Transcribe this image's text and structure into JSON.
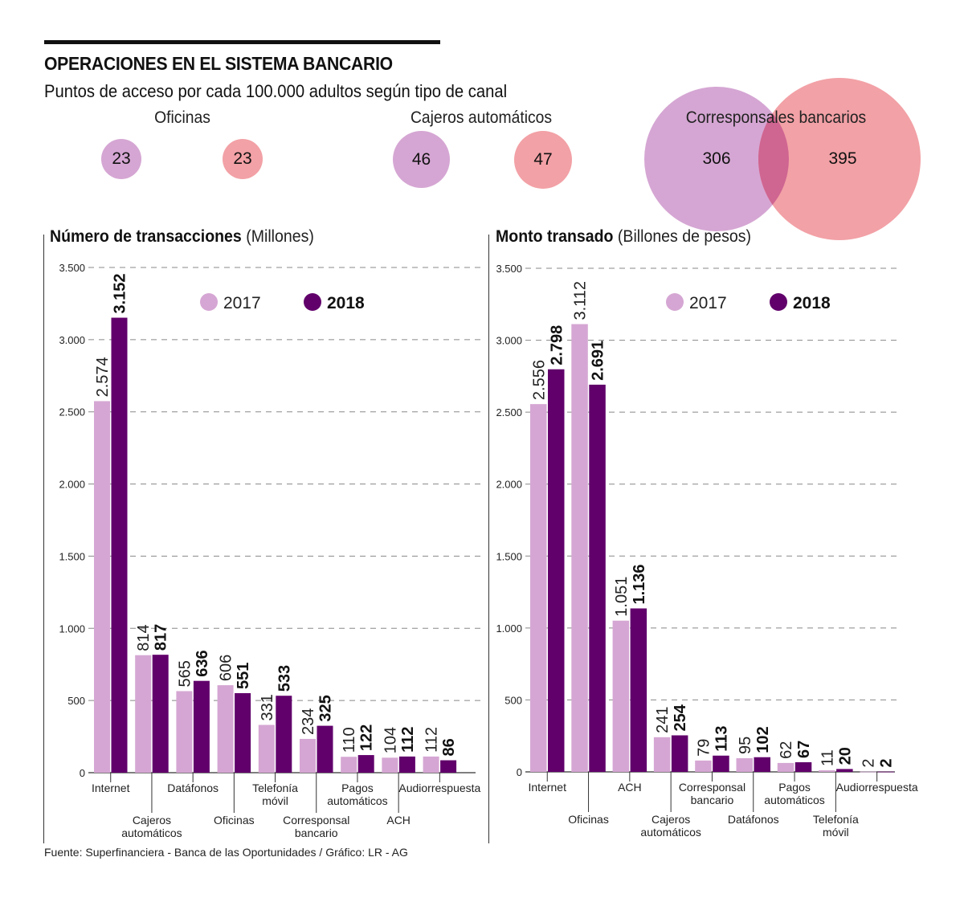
{
  "header": {
    "title": "OPERACIONES EN EL SISTEMA BANCARIO",
    "subtitle": "Puntos de acceso por cada 100.000 adultos según tipo de canal"
  },
  "colors": {
    "c2017": "#d5a6d3",
    "c2018": "#61006b",
    "pink": "#f2a1a6",
    "overlap": "#cf6591",
    "grid": "#888888",
    "axis": "#333333"
  },
  "access_points": {
    "groups": [
      {
        "label": "Oficinas",
        "v2017": "23",
        "v2018": "23"
      },
      {
        "label": "Cajeros automáticos",
        "v2017": "46",
        "v2018": "47"
      },
      {
        "label": "Corresponsales bancarios",
        "v2017": "306",
        "v2018": "395"
      }
    ]
  },
  "legend": {
    "y2017": "2017",
    "y2018": "2018"
  },
  "source": "Fuente: Superfinanciera - Banca de las Oportunidades / Gráfico: LR - AG",
  "chart_data": [
    {
      "type": "bar",
      "title": "Número de transacciones",
      "unit": "(Millones)",
      "xlabel": "",
      "ylabel": "",
      "ylim": [
        0,
        3500
      ],
      "yticks": [
        0,
        500,
        1000,
        1500,
        2000,
        2500,
        3000,
        3500
      ],
      "ytick_labels": [
        "0",
        "500",
        "1.000",
        "1.500",
        "2.000",
        "2.500",
        "3.000",
        "3.500"
      ],
      "grid": true,
      "legend_position": "top-center",
      "categories": [
        "Internet",
        "Cajeros automáticos",
        "Datáfonos",
        "Oficinas",
        "Telefonía móvil",
        "Corresponsal bancario",
        "Pagos automáticos",
        "ACH",
        "Audiorrespuesta"
      ],
      "category_lines": [
        [
          "Internet"
        ],
        [
          "Cajeros",
          "automáticos"
        ],
        [
          "Datáfonos"
        ],
        [
          "Oficinas"
        ],
        [
          "Telefonía",
          "móvil"
        ],
        [
          "Corresponsal",
          "bancario"
        ],
        [
          "Pagos",
          "automáticos"
        ],
        [
          "ACH"
        ],
        [
          "Audiorrespuesta"
        ]
      ],
      "series": [
        {
          "name": "2017",
          "values": [
            2574,
            814,
            565,
            606,
            331,
            234,
            110,
            104,
            112
          ],
          "labels": [
            "2.574",
            "814",
            "565",
            "606",
            "331",
            "234",
            "110",
            "104",
            "112"
          ]
        },
        {
          "name": "2018",
          "values": [
            3152,
            817,
            636,
            551,
            533,
            325,
            122,
            112,
            86
          ],
          "labels": [
            "3.152",
            "817",
            "636",
            "551",
            "533",
            "325",
            "122",
            "112",
            "86"
          ]
        }
      ]
    },
    {
      "type": "bar",
      "title": "Monto transado",
      "unit": "(Billones de pesos)",
      "xlabel": "",
      "ylabel": "",
      "ylim": [
        0,
        3500
      ],
      "yticks": [
        0,
        500,
        1000,
        1500,
        2000,
        2500,
        3000,
        3500
      ],
      "ytick_labels": [
        "0",
        "500",
        "1.000",
        "1.500",
        "2.000",
        "2.500",
        "3.000",
        "3.500"
      ],
      "grid": true,
      "legend_position": "top-center",
      "categories": [
        "Internet",
        "Oficinas",
        "ACH",
        "Cajeros automáticos",
        "Corresponsal bancario",
        "Datáfonos",
        "Pagos automáticos",
        "Telefonía móvil",
        "Audiorrespuesta"
      ],
      "category_lines": [
        [
          "Internet"
        ],
        [
          "Oficinas"
        ],
        [
          "ACH"
        ],
        [
          "Cajeros",
          "automáticos"
        ],
        [
          "Corresponsal",
          "bancario"
        ],
        [
          "Datáfonos"
        ],
        [
          "Pagos",
          "automáticos"
        ],
        [
          "Telefonía",
          "móvil"
        ],
        [
          "Audiorrespuesta"
        ]
      ],
      "series": [
        {
          "name": "2017",
          "values": [
            2556,
            3112,
            1051,
            241,
            79,
            95,
            62,
            11,
            2
          ],
          "labels": [
            "2.556",
            "3.112",
            "1.051",
            "241",
            "79",
            "95",
            "62",
            "11",
            "2"
          ]
        },
        {
          "name": "2018",
          "values": [
            2798,
            2691,
            1136,
            254,
            113,
            102,
            67,
            20,
            2
          ],
          "labels": [
            "2.798",
            "2.691",
            "1.136",
            "254",
            "113",
            "102",
            "67",
            "20",
            "2"
          ]
        }
      ]
    }
  ]
}
